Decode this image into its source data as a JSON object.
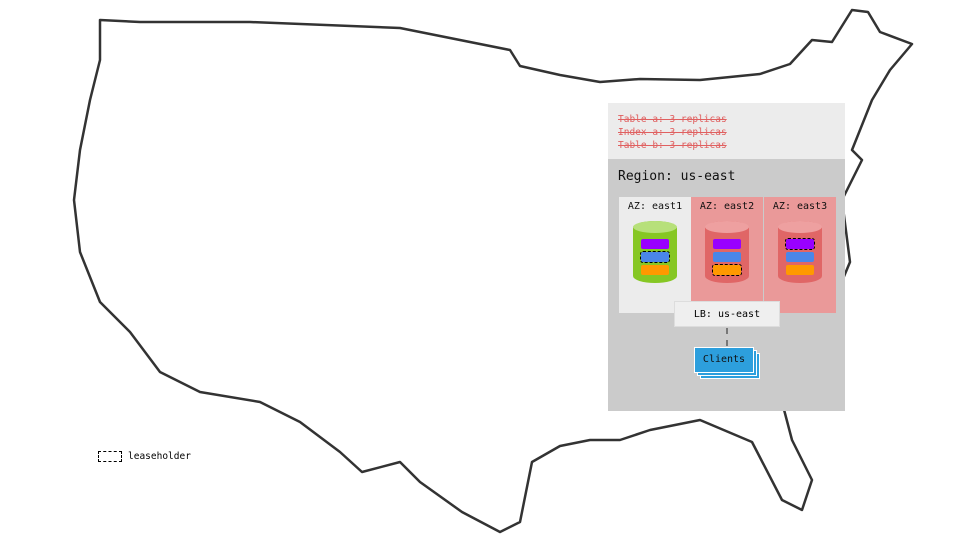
{
  "replication_notes": [
    "Table a: 3 replicas",
    "Index a: 3 replicas",
    "Table b: 3 replicas"
  ],
  "region": {
    "label": "Region: us-east",
    "zones": [
      {
        "label": "AZ: east1",
        "status": "healthy",
        "leaseholder": "blue"
      },
      {
        "label": "AZ: east2",
        "status": "failed",
        "leaseholder": "orange"
      },
      {
        "label": "AZ: east3",
        "status": "failed",
        "leaseholder": "purple"
      }
    ],
    "load_balancer": "LB: us-east",
    "clients": "Clients"
  },
  "legend": {
    "leaseholder": "leaseholder"
  },
  "colors": {
    "purple": "#9900ff",
    "blue": "#4a86e8",
    "orange": "#ff9900",
    "healthy": "#86c724",
    "failed": "#e06666",
    "failed_bg": "#ea9999",
    "strike": "#e06060",
    "clients": "#2d9fdd"
  }
}
